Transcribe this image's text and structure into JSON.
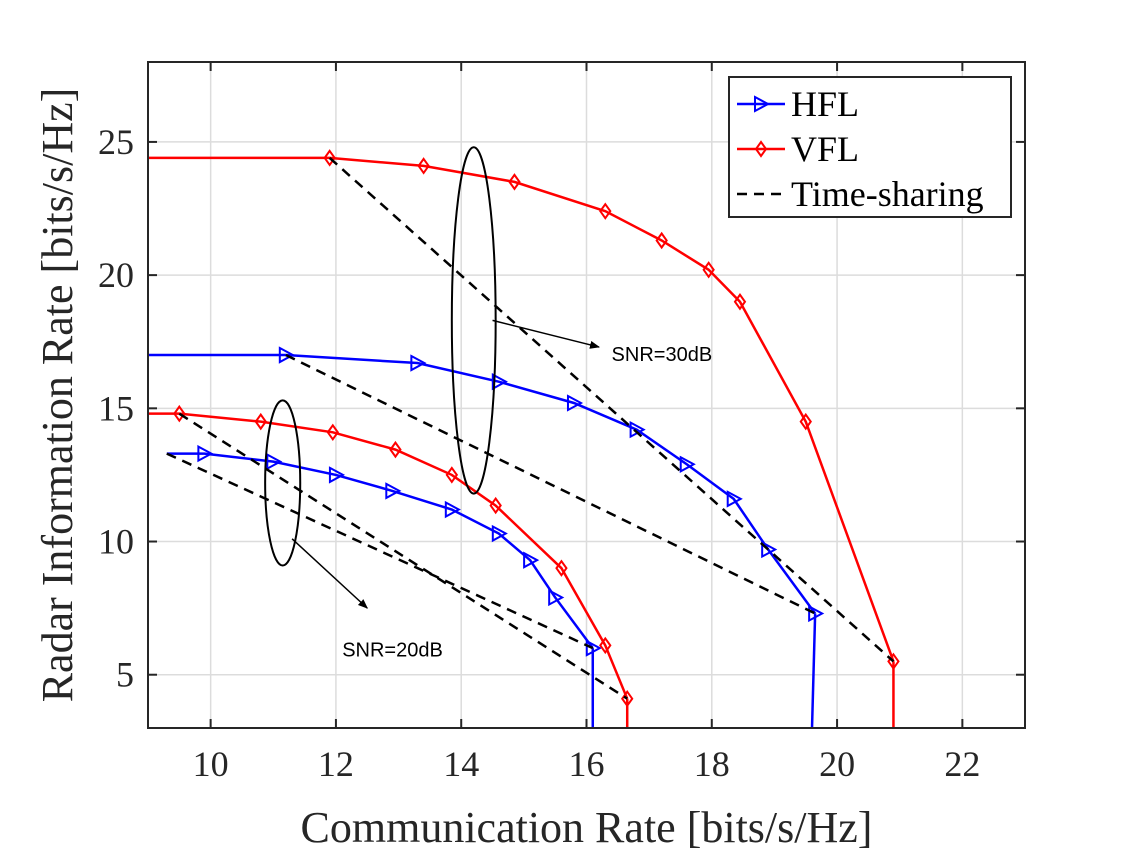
{
  "chart_data": {
    "type": "line",
    "title": "",
    "xlabel": "Communication Rate [bits/s/Hz]",
    "ylabel": "Radar Information Rate [bits/s/Hz]",
    "xlim": [
      9,
      23
    ],
    "ylim": [
      3,
      28
    ],
    "xticks": [
      10,
      12,
      14,
      16,
      18,
      20,
      22
    ],
    "yticks": [
      5,
      10,
      15,
      20,
      25
    ],
    "grid": true,
    "legend_position": "top-right",
    "series": [
      {
        "name": "HFL",
        "label": "HFL",
        "color": "#0000FF",
        "marker": "triangle-right",
        "style": "solid",
        "points": [
          [
            9,
            17.0
          ],
          [
            11.2,
            17.0
          ],
          [
            13.3,
            16.7
          ],
          [
            14.6,
            16.0
          ],
          [
            15.8,
            15.2
          ],
          [
            16.8,
            14.2
          ],
          [
            17.6,
            12.9
          ],
          [
            18.35,
            11.6
          ],
          [
            18.9,
            9.7
          ],
          [
            19.65,
            7.3
          ]
        ],
        "vertical": [
          19.6,
          19.65,
          3
        ]
      },
      {
        "name": "VFL",
        "label": "VFL",
        "color": "#FF0000",
        "marker": "diamond",
        "style": "solid",
        "points": [
          [
            9,
            24.4
          ],
          [
            11.9,
            24.4
          ],
          [
            13.4,
            24.1
          ],
          [
            14.85,
            23.5
          ],
          [
            16.3,
            22.4
          ],
          [
            17.2,
            21.3
          ],
          [
            17.95,
            20.2
          ],
          [
            18.45,
            19.0
          ],
          [
            19.5,
            14.5
          ],
          [
            20.9,
            5.5
          ]
        ],
        "vertical": [
          20.9,
          20.9,
          3
        ]
      },
      {
        "name": "HFL",
        "label": "HFL",
        "color": "#0000FF",
        "marker": "triangle-right",
        "style": "solid",
        "points": [
          [
            9.3,
            13.3
          ],
          [
            9.9,
            13.3
          ],
          [
            11.0,
            13.0
          ],
          [
            12.0,
            12.5
          ],
          [
            12.9,
            11.9
          ],
          [
            13.85,
            11.2
          ],
          [
            14.6,
            10.3
          ],
          [
            15.1,
            9.3
          ],
          [
            15.5,
            7.9
          ],
          [
            16.1,
            6.0
          ]
        ],
        "vertical": [
          16.1,
          16.1,
          3
        ]
      },
      {
        "name": "VFL",
        "label": "VFL",
        "color": "#FF0000",
        "marker": "diamond",
        "style": "solid",
        "points": [
          [
            9,
            14.8
          ],
          [
            9.5,
            14.8
          ],
          [
            10.8,
            14.5
          ],
          [
            11.95,
            14.1
          ],
          [
            12.95,
            13.45
          ],
          [
            13.85,
            12.5
          ],
          [
            14.55,
            11.35
          ],
          [
            15.6,
            9.0
          ],
          [
            16.3,
            6.1
          ],
          [
            16.65,
            4.1
          ]
        ],
        "vertical": [
          16.65,
          16.65,
          3
        ]
      }
    ],
    "time_sharing": [
      {
        "name": "Time-sharing",
        "color": "#000000",
        "points": [
          [
            11.9,
            24.4
          ],
          [
            20.9,
            5.5
          ]
        ]
      },
      {
        "name": "Time-sharing",
        "color": "#000000",
        "points": [
          [
            11.2,
            17.0
          ],
          [
            19.65,
            7.3
          ]
        ]
      },
      {
        "name": "Time-sharing",
        "color": "#000000",
        "points": [
          [
            9.5,
            14.8
          ],
          [
            16.65,
            4.1
          ]
        ]
      },
      {
        "name": "Time-sharing",
        "color": "#000000",
        "points": [
          [
            9.3,
            13.3
          ],
          [
            16.1,
            6.0
          ]
        ]
      }
    ],
    "legend": [
      {
        "label": "HFL",
        "color": "#0000FF",
        "marker": "triangle-right",
        "style": "solid"
      },
      {
        "label": "VFL",
        "color": "#FF0000",
        "marker": "diamond",
        "style": "solid"
      },
      {
        "label": "Time-sharing",
        "color": "#000000",
        "marker": "none",
        "style": "dashed"
      }
    ],
    "annotations": [
      {
        "text": "SNR=30dB",
        "ellipse_center": [
          14.2,
          18.3
        ],
        "ellipse_radii": [
          0.35,
          6.5
        ],
        "arrow_from": [
          14.5,
          18.3
        ],
        "arrow_to": [
          16.2,
          17.3
        ],
        "text_at": [
          16.4,
          17.0
        ]
      },
      {
        "text": "SNR=20dB",
        "ellipse_center": [
          11.15,
          12.2
        ],
        "ellipse_radii": [
          0.28,
          3.1
        ],
        "arrow_from": [
          11.3,
          10.1
        ],
        "arrow_to": [
          12.5,
          7.5
        ],
        "text_at": [
          12.1,
          5.9
        ]
      }
    ]
  }
}
